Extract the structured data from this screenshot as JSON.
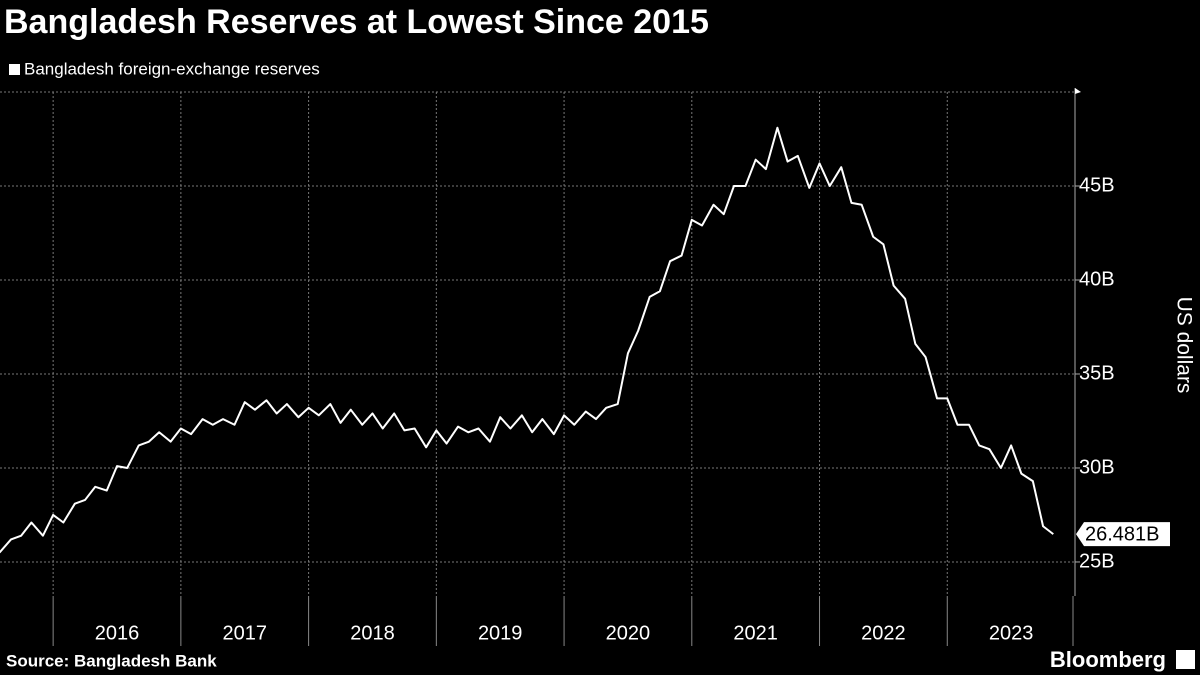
{
  "chart_data": {
    "type": "line",
    "title": "Bangladesh Reserves at Lowest Since 2015",
    "y_label": "US dollars",
    "source": "Source: Bangladesh Bank",
    "brand": "Bloomberg",
    "last_value_label": "26.481B",
    "xlim": [
      2015.584,
      2024.0
    ],
    "xticks": [
      2016,
      2017,
      2018,
      2019,
      2020,
      2021,
      2022,
      2023
    ],
    "ylim": [
      23.19,
      50
    ],
    "yticks": [
      {
        "value": 25,
        "label": "25B"
      },
      {
        "value": 30,
        "label": "30B"
      },
      {
        "value": 35,
        "label": "35B"
      },
      {
        "value": 40,
        "label": "40B"
      },
      {
        "value": 45,
        "label": "45B"
      }
    ],
    "grid": true,
    "x": [
      2015.58,
      2015.67,
      2015.75,
      2015.83,
      2015.92,
      2016.0,
      2016.08,
      2016.17,
      2016.25,
      2016.33,
      2016.42,
      2016.5,
      2016.58,
      2016.67,
      2016.75,
      2016.83,
      2016.92,
      2017.0,
      2017.08,
      2017.17,
      2017.25,
      2017.33,
      2017.42,
      2017.5,
      2017.58,
      2017.67,
      2017.75,
      2017.83,
      2017.92,
      2018.0,
      2018.08,
      2018.17,
      2018.25,
      2018.33,
      2018.42,
      2018.5,
      2018.58,
      2018.67,
      2018.75,
      2018.83,
      2018.92,
      2019.0,
      2019.08,
      2019.17,
      2019.25,
      2019.33,
      2019.42,
      2019.5,
      2019.58,
      2019.67,
      2019.75,
      2019.83,
      2019.92,
      2020.0,
      2020.08,
      2020.17,
      2020.25,
      2020.33,
      2020.42,
      2020.5,
      2020.58,
      2020.67,
      2020.75,
      2020.83,
      2020.92,
      2021.0,
      2021.08,
      2021.17,
      2021.25,
      2021.33,
      2021.42,
      2021.5,
      2021.58,
      2021.67,
      2021.75,
      2021.83,
      2021.92,
      2022.0,
      2022.08,
      2022.17,
      2022.25,
      2022.33,
      2022.42,
      2022.5,
      2022.58,
      2022.67,
      2022.75,
      2022.83,
      2022.92,
      2023.0,
      2023.08,
      2023.17,
      2023.25,
      2023.33,
      2023.42,
      2023.5,
      2023.58,
      2023.67,
      2023.75,
      2023.83
    ],
    "series": [
      {
        "name": "Bangladesh foreign-exchange reserves",
        "color": "#ffffff",
        "values": [
          25.5,
          26.2,
          26.4,
          27.1,
          26.4,
          27.5,
          27.1,
          28.1,
          28.3,
          29.0,
          28.8,
          30.1,
          30.0,
          31.2,
          31.4,
          31.9,
          31.4,
          32.1,
          31.8,
          32.6,
          32.3,
          32.6,
          32.3,
          33.5,
          33.1,
          33.6,
          32.9,
          33.4,
          32.7,
          33.2,
          32.8,
          33.4,
          32.4,
          33.1,
          32.3,
          32.9,
          32.1,
          32.9,
          32.0,
          32.1,
          31.1,
          32.0,
          31.3,
          32.2,
          31.9,
          32.1,
          31.4,
          32.7,
          32.1,
          32.8,
          31.9,
          32.6,
          31.8,
          32.8,
          32.3,
          33.0,
          32.6,
          33.2,
          33.4,
          36.1,
          37.3,
          39.1,
          39.4,
          41.0,
          41.3,
          43.2,
          42.9,
          44.0,
          43.5,
          45.0,
          45.0,
          46.4,
          45.9,
          48.1,
          46.3,
          46.6,
          44.9,
          46.2,
          45.0,
          46.0,
          44.1,
          44.0,
          42.3,
          41.9,
          39.7,
          39.0,
          36.6,
          35.9,
          33.7,
          33.7,
          32.3,
          32.3,
          31.2,
          31.0,
          30.0,
          31.2,
          29.7,
          29.3,
          26.9,
          26.481
        ]
      }
    ]
  }
}
